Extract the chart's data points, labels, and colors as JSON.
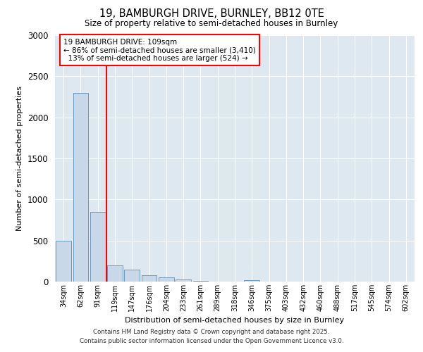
{
  "title_line1": "19, BAMBURGH DRIVE, BURNLEY, BB12 0TE",
  "title_line2": "Size of property relative to semi-detached houses in Burnley",
  "xlabel": "Distribution of semi-detached houses by size in Burnley",
  "ylabel": "Number of semi-detached properties",
  "categories": [
    "34sqm",
    "62sqm",
    "91sqm",
    "119sqm",
    "147sqm",
    "176sqm",
    "204sqm",
    "233sqm",
    "261sqm",
    "289sqm",
    "318sqm",
    "346sqm",
    "375sqm",
    "403sqm",
    "432sqm",
    "460sqm",
    "488sqm",
    "517sqm",
    "545sqm",
    "574sqm",
    "602sqm"
  ],
  "values": [
    500,
    2300,
    850,
    200,
    150,
    80,
    50,
    30,
    5,
    0,
    0,
    20,
    0,
    0,
    0,
    0,
    0,
    0,
    0,
    0,
    0
  ],
  "bar_color": "#c8d8e8",
  "bar_edge_color": "#5b8db8",
  "highlight_line_index": 2.5,
  "annotation_box_text": "19 BAMBURGH DRIVE: 109sqm\n← 86% of semi-detached houses are smaller (3,410)\n  13% of semi-detached houses are larger (524) →",
  "annotation_box_color": "red",
  "ylim": [
    0,
    3000
  ],
  "yticks": [
    0,
    500,
    1000,
    1500,
    2000,
    2500,
    3000
  ],
  "background_color": "#dde8f0",
  "footer_line1": "Contains HM Land Registry data © Crown copyright and database right 2025.",
  "footer_line2": "Contains public sector information licensed under the Open Government Licence v3.0."
}
